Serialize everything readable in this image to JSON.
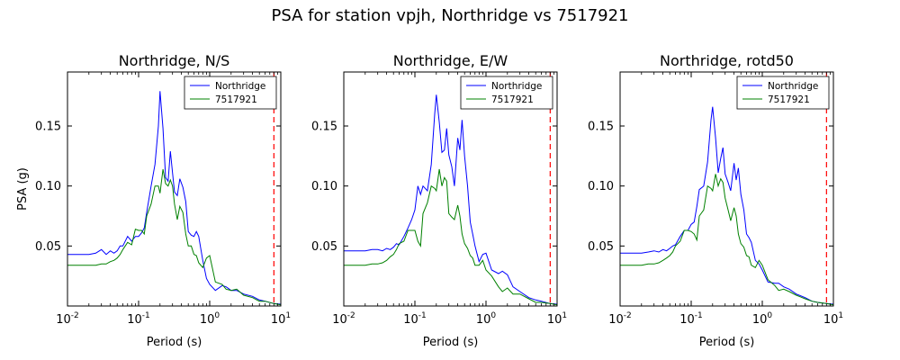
{
  "figure": {
    "title": "PSA for station vpjh, Northridge vs 7517921"
  },
  "chart_data": [
    {
      "type": "line",
      "title": "Northridge, N/S",
      "xlabel": "Period (s)",
      "ylabel": "PSA (g)",
      "xscale": "log",
      "xlim": [
        0.01,
        10
      ],
      "ylim": [
        0,
        0.195
      ],
      "xticks": [
        "10^-2",
        "10^-1",
        "10^0",
        "10^1"
      ],
      "yticks": [
        0.05,
        0.1,
        0.15
      ],
      "legend": "top-right",
      "vline": {
        "x": 8,
        "color": "#ff0000",
        "style": "dashed"
      },
      "series": [
        {
          "name": "Northridge",
          "color": "#0000ff",
          "x": [
            0.01,
            0.015,
            0.02,
            0.025,
            0.03,
            0.035,
            0.04,
            0.045,
            0.05,
            0.055,
            0.06,
            0.07,
            0.08,
            0.09,
            0.1,
            0.11,
            0.12,
            0.13,
            0.15,
            0.17,
            0.19,
            0.2,
            0.22,
            0.24,
            0.26,
            0.28,
            0.3,
            0.32,
            0.35,
            0.38,
            0.42,
            0.46,
            0.5,
            0.55,
            0.6,
            0.65,
            0.7,
            0.8,
            0.9,
            1.0,
            1.2,
            1.5,
            1.7,
            2.0,
            2.4,
            3.0,
            4.0,
            5.0,
            6.0,
            8.0,
            10.0
          ],
          "y": [
            0.043,
            0.043,
            0.043,
            0.044,
            0.047,
            0.043,
            0.046,
            0.044,
            0.046,
            0.05,
            0.05,
            0.058,
            0.054,
            0.058,
            0.058,
            0.061,
            0.065,
            0.078,
            0.1,
            0.118,
            0.15,
            0.179,
            0.148,
            0.107,
            0.104,
            0.129,
            0.111,
            0.095,
            0.092,
            0.106,
            0.099,
            0.087,
            0.062,
            0.059,
            0.058,
            0.062,
            0.058,
            0.038,
            0.023,
            0.018,
            0.013,
            0.017,
            0.016,
            0.013,
            0.013,
            0.01,
            0.008,
            0.005,
            0.004,
            0.002,
            0.0015
          ]
        },
        {
          "name": "7517921",
          "color": "#008000",
          "x": [
            0.01,
            0.015,
            0.02,
            0.025,
            0.03,
            0.035,
            0.04,
            0.045,
            0.05,
            0.055,
            0.06,
            0.07,
            0.08,
            0.09,
            0.1,
            0.11,
            0.12,
            0.13,
            0.15,
            0.17,
            0.19,
            0.2,
            0.22,
            0.24,
            0.26,
            0.28,
            0.3,
            0.32,
            0.35,
            0.38,
            0.42,
            0.46,
            0.5,
            0.55,
            0.6,
            0.65,
            0.7,
            0.8,
            0.9,
            1.0,
            1.2,
            1.5,
            1.7,
            2.0,
            2.4,
            3.0,
            4.0,
            5.0,
            6.0,
            8.0,
            10.0
          ],
          "y": [
            0.034,
            0.034,
            0.034,
            0.034,
            0.035,
            0.035,
            0.037,
            0.038,
            0.04,
            0.043,
            0.047,
            0.053,
            0.051,
            0.064,
            0.063,
            0.063,
            0.06,
            0.075,
            0.085,
            0.1,
            0.1,
            0.094,
            0.114,
            0.102,
            0.1,
            0.105,
            0.1,
            0.085,
            0.072,
            0.083,
            0.078,
            0.06,
            0.05,
            0.05,
            0.043,
            0.042,
            0.036,
            0.032,
            0.04,
            0.042,
            0.02,
            0.018,
            0.014,
            0.013,
            0.014,
            0.009,
            0.007,
            0.004,
            0.004,
            0.002,
            0.001
          ]
        }
      ]
    },
    {
      "type": "line",
      "title": "Northridge, E/W",
      "xlabel": "Period (s)",
      "xscale": "log",
      "xlim": [
        0.01,
        10
      ],
      "ylim": [
        0,
        0.195
      ],
      "xticks": [
        "10^-2",
        "10^-1",
        "10^0",
        "10^1"
      ],
      "yticks": [
        0.05,
        0.1,
        0.15
      ],
      "legend": "top-right",
      "vline": {
        "x": 8,
        "color": "#ff0000",
        "style": "dashed"
      },
      "series": [
        {
          "name": "Northridge",
          "color": "#0000ff",
          "x": [
            0.01,
            0.015,
            0.02,
            0.025,
            0.03,
            0.035,
            0.04,
            0.045,
            0.05,
            0.055,
            0.06,
            0.07,
            0.08,
            0.09,
            0.1,
            0.11,
            0.12,
            0.13,
            0.15,
            0.17,
            0.19,
            0.2,
            0.22,
            0.24,
            0.26,
            0.28,
            0.3,
            0.33,
            0.36,
            0.4,
            0.43,
            0.46,
            0.5,
            0.55,
            0.6,
            0.65,
            0.7,
            0.8,
            0.9,
            1.0,
            1.2,
            1.5,
            1.7,
            2.0,
            2.4,
            3.0,
            4.0,
            5.0,
            6.0,
            8.0,
            10.0
          ],
          "y": [
            0.046,
            0.046,
            0.046,
            0.047,
            0.047,
            0.046,
            0.048,
            0.047,
            0.049,
            0.052,
            0.051,
            0.058,
            0.065,
            0.072,
            0.08,
            0.1,
            0.093,
            0.1,
            0.096,
            0.118,
            0.16,
            0.176,
            0.153,
            0.128,
            0.13,
            0.148,
            0.126,
            0.116,
            0.1,
            0.14,
            0.13,
            0.155,
            0.125,
            0.1,
            0.07,
            0.06,
            0.05,
            0.037,
            0.043,
            0.044,
            0.03,
            0.027,
            0.029,
            0.026,
            0.016,
            0.012,
            0.007,
            0.005,
            0.004,
            0.002,
            0.0015
          ]
        },
        {
          "name": "7517921",
          "color": "#008000",
          "x": [
            0.01,
            0.015,
            0.02,
            0.025,
            0.03,
            0.035,
            0.04,
            0.045,
            0.05,
            0.055,
            0.06,
            0.07,
            0.08,
            0.09,
            0.1,
            0.11,
            0.12,
            0.13,
            0.15,
            0.17,
            0.19,
            0.2,
            0.22,
            0.24,
            0.26,
            0.28,
            0.3,
            0.33,
            0.36,
            0.4,
            0.43,
            0.46,
            0.5,
            0.55,
            0.6,
            0.65,
            0.7,
            0.8,
            0.9,
            1.0,
            1.2,
            1.5,
            1.7,
            2.0,
            2.4,
            3.0,
            4.0,
            5.0,
            6.0,
            8.0,
            10.0
          ],
          "y": [
            0.034,
            0.034,
            0.034,
            0.035,
            0.035,
            0.036,
            0.038,
            0.041,
            0.043,
            0.047,
            0.052,
            0.054,
            0.063,
            0.063,
            0.063,
            0.054,
            0.05,
            0.077,
            0.086,
            0.1,
            0.098,
            0.096,
            0.114,
            0.1,
            0.107,
            0.104,
            0.077,
            0.074,
            0.072,
            0.084,
            0.075,
            0.06,
            0.052,
            0.048,
            0.042,
            0.04,
            0.034,
            0.034,
            0.038,
            0.03,
            0.025,
            0.016,
            0.012,
            0.015,
            0.01,
            0.01,
            0.006,
            0.003,
            0.003,
            0.002,
            0.001
          ]
        }
      ]
    },
    {
      "type": "line",
      "title": "Northridge, rotd50",
      "xlabel": "Period (s)",
      "xscale": "log",
      "xlim": [
        0.01,
        10
      ],
      "ylim": [
        0,
        0.195
      ],
      "xticks": [
        "10^-2",
        "10^-1",
        "10^0",
        "10^1"
      ],
      "yticks": [
        0.05,
        0.1,
        0.15
      ],
      "legend": "top-right",
      "vline": {
        "x": 8,
        "color": "#ff0000",
        "style": "dashed"
      },
      "series": [
        {
          "name": "Northridge",
          "color": "#0000ff",
          "x": [
            0.01,
            0.015,
            0.02,
            0.025,
            0.03,
            0.035,
            0.04,
            0.045,
            0.05,
            0.055,
            0.06,
            0.07,
            0.08,
            0.09,
            0.1,
            0.11,
            0.12,
            0.13,
            0.15,
            0.17,
            0.19,
            0.2,
            0.22,
            0.24,
            0.26,
            0.28,
            0.3,
            0.33,
            0.36,
            0.4,
            0.43,
            0.46,
            0.5,
            0.55,
            0.6,
            0.65,
            0.7,
            0.8,
            0.9,
            1.0,
            1.2,
            1.5,
            1.7,
            2.0,
            2.4,
            3.0,
            4.0,
            5.0,
            6.0,
            8.0,
            10.0
          ],
          "y": [
            0.044,
            0.044,
            0.044,
            0.045,
            0.046,
            0.045,
            0.047,
            0.046,
            0.048,
            0.05,
            0.051,
            0.058,
            0.063,
            0.063,
            0.068,
            0.07,
            0.083,
            0.097,
            0.1,
            0.12,
            0.155,
            0.166,
            0.14,
            0.111,
            0.123,
            0.132,
            0.11,
            0.103,
            0.096,
            0.119,
            0.105,
            0.115,
            0.093,
            0.08,
            0.06,
            0.057,
            0.053,
            0.038,
            0.035,
            0.03,
            0.02,
            0.019,
            0.019,
            0.016,
            0.014,
            0.01,
            0.007,
            0.004,
            0.003,
            0.002,
            0.0015
          ]
        },
        {
          "name": "7517921",
          "color": "#008000",
          "x": [
            0.01,
            0.015,
            0.02,
            0.025,
            0.03,
            0.035,
            0.04,
            0.045,
            0.05,
            0.055,
            0.06,
            0.07,
            0.08,
            0.09,
            0.1,
            0.11,
            0.12,
            0.13,
            0.15,
            0.17,
            0.19,
            0.2,
            0.22,
            0.24,
            0.26,
            0.28,
            0.3,
            0.33,
            0.36,
            0.4,
            0.43,
            0.46,
            0.5,
            0.55,
            0.6,
            0.65,
            0.7,
            0.8,
            0.9,
            1.0,
            1.2,
            1.5,
            1.7,
            2.0,
            2.4,
            3.0,
            4.0,
            5.0,
            6.0,
            8.0,
            10.0
          ],
          "y": [
            0.034,
            0.034,
            0.034,
            0.035,
            0.035,
            0.036,
            0.038,
            0.04,
            0.042,
            0.045,
            0.05,
            0.054,
            0.063,
            0.063,
            0.062,
            0.06,
            0.055,
            0.075,
            0.08,
            0.1,
            0.098,
            0.096,
            0.11,
            0.1,
            0.106,
            0.103,
            0.09,
            0.08,
            0.071,
            0.082,
            0.075,
            0.06,
            0.052,
            0.049,
            0.042,
            0.041,
            0.034,
            0.032,
            0.038,
            0.034,
            0.022,
            0.017,
            0.013,
            0.014,
            0.012,
            0.009,
            0.006,
            0.004,
            0.003,
            0.002,
            0.001
          ]
        }
      ]
    }
  ]
}
